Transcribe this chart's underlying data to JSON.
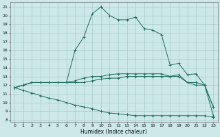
{
  "xlabel": "Humidex (Indice chaleur)",
  "bg_color": "#cce8e8",
  "grid_color": "#a8cccc",
  "line_color": "#1a6b5a",
  "marker": "+",
  "xlim": [
    -0.5,
    23.5
  ],
  "ylim": [
    7.8,
    21.5
  ],
  "yticks": [
    8,
    9,
    10,
    11,
    12,
    13,
    14,
    15,
    16,
    17,
    18,
    19,
    20,
    21
  ],
  "xticks": [
    0,
    1,
    2,
    3,
    4,
    5,
    6,
    7,
    8,
    9,
    10,
    11,
    12,
    13,
    14,
    15,
    16,
    17,
    18,
    19,
    20,
    21,
    22,
    23
  ],
  "series": [
    {
      "x": [
        0,
        1,
        2,
        3,
        4,
        5,
        6,
        7,
        8,
        9,
        10,
        11,
        12,
        13,
        14,
        15,
        16,
        17,
        18,
        19,
        20,
        21,
        22,
        23
      ],
      "y": [
        11.7,
        12.0,
        12.3,
        12.3,
        12.3,
        12.3,
        12.3,
        16.0,
        17.5,
        20.2,
        21.0,
        20.0,
        19.5,
        19.5,
        19.8,
        18.5,
        18.3,
        17.8,
        14.3,
        14.5,
        13.2,
        13.3,
        12.0,
        8.5
      ]
    },
    {
      "x": [
        0,
        1,
        2,
        3,
        4,
        5,
        6,
        7,
        8,
        9,
        10,
        11,
        12,
        13,
        14,
        15,
        16,
        17,
        18,
        19,
        20,
        21,
        22,
        23
      ],
      "y": [
        11.7,
        12.0,
        12.3,
        12.3,
        12.3,
        12.3,
        12.3,
        12.5,
        12.8,
        13.0,
        13.0,
        13.2,
        13.3,
        13.3,
        13.3,
        13.3,
        13.3,
        13.3,
        13.0,
        13.2,
        12.3,
        12.3,
        12.0,
        9.5
      ]
    },
    {
      "x": [
        0,
        1,
        2,
        3,
        4,
        5,
        6,
        7,
        8,
        9,
        10,
        11,
        12,
        13,
        14,
        15,
        16,
        17,
        18,
        19,
        20,
        21,
        22,
        23
      ],
      "y": [
        11.7,
        12.0,
        12.3,
        12.3,
        12.3,
        12.3,
        12.3,
        12.3,
        12.3,
        12.5,
        12.7,
        12.8,
        12.8,
        13.0,
        13.0,
        13.0,
        13.0,
        13.0,
        13.0,
        13.0,
        12.3,
        12.0,
        12.0,
        9.5
      ]
    },
    {
      "x": [
        0,
        1,
        2,
        3,
        4,
        5,
        6,
        7,
        8,
        9,
        10,
        11,
        12,
        13,
        14,
        15,
        16,
        17,
        18,
        19,
        20,
        21,
        22,
        23
      ],
      "y": [
        11.7,
        11.4,
        11.1,
        10.8,
        10.5,
        10.3,
        10.0,
        9.7,
        9.5,
        9.3,
        9.0,
        8.8,
        8.7,
        8.6,
        8.5,
        8.5,
        8.5,
        8.5,
        8.5,
        8.5,
        8.5,
        8.5,
        8.5,
        8.3
      ]
    }
  ]
}
